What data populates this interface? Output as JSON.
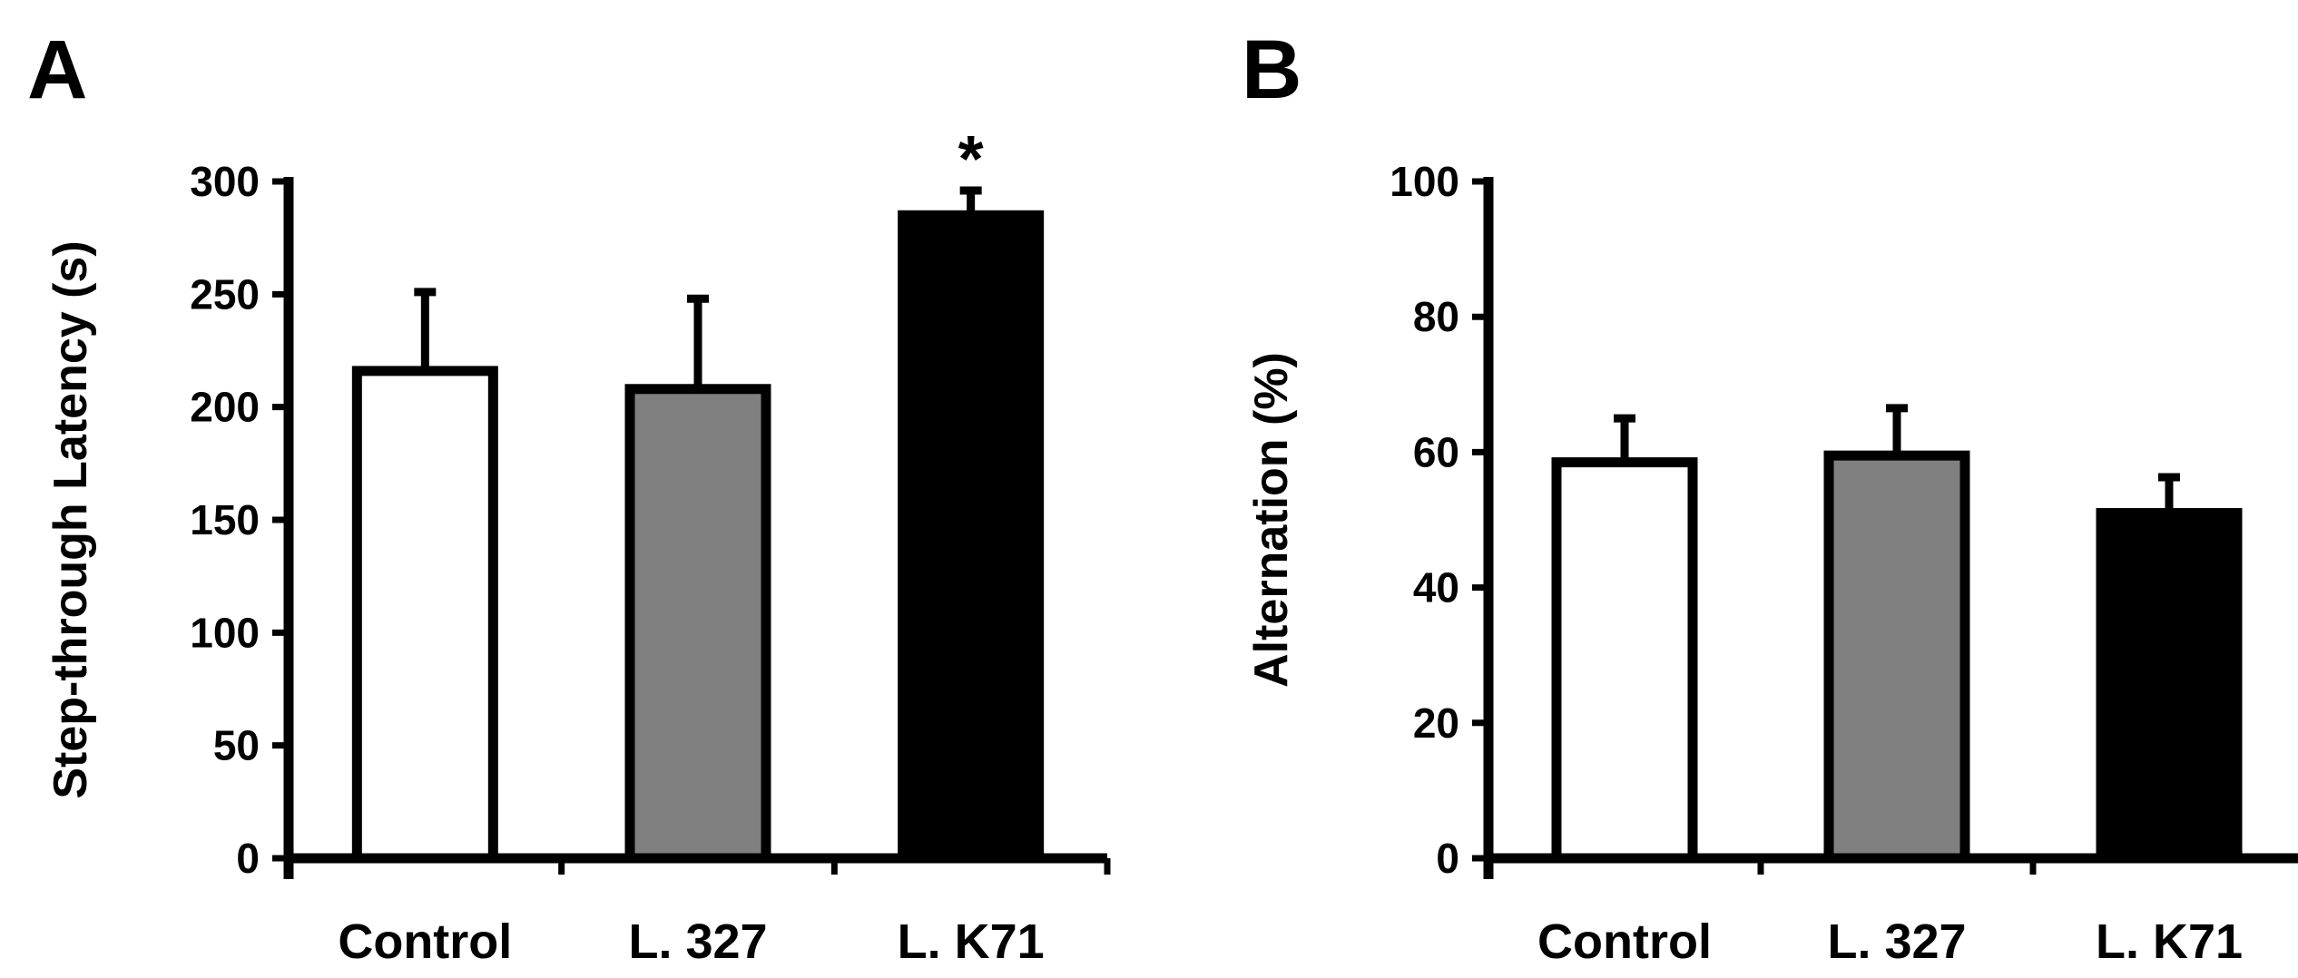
{
  "chart_data": [
    {
      "panel": "A",
      "type": "bar",
      "ylabel": "Step-through Latency (s)",
      "xlabel": "",
      "ylim": [
        0,
        300
      ],
      "yticks": [
        "0",
        "50",
        "100",
        "150",
        "200",
        "250",
        "300"
      ],
      "categories": [
        "Control",
        "L. 327",
        "L. K71"
      ],
      "values": [
        216,
        208,
        285
      ],
      "errors": [
        35,
        40,
        11
      ],
      "fills": [
        "#ffffff",
        "#808080",
        "#000000"
      ],
      "significance": [
        "",
        "",
        "*"
      ]
    },
    {
      "panel": "B",
      "type": "bar",
      "ylabel": "Alternation (%)",
      "xlabel": "",
      "ylim": [
        0,
        100
      ],
      "yticks": [
        "0",
        "20",
        "40",
        "60",
        "80",
        "100"
      ],
      "categories": [
        "Control",
        "L. 327",
        "L. K71"
      ],
      "values": [
        58.5,
        59.5,
        51
      ],
      "errors": [
        6.5,
        7,
        5.3
      ],
      "fills": [
        "#ffffff",
        "#808080",
        "#000000"
      ],
      "significance": [
        "",
        "",
        ""
      ]
    }
  ]
}
